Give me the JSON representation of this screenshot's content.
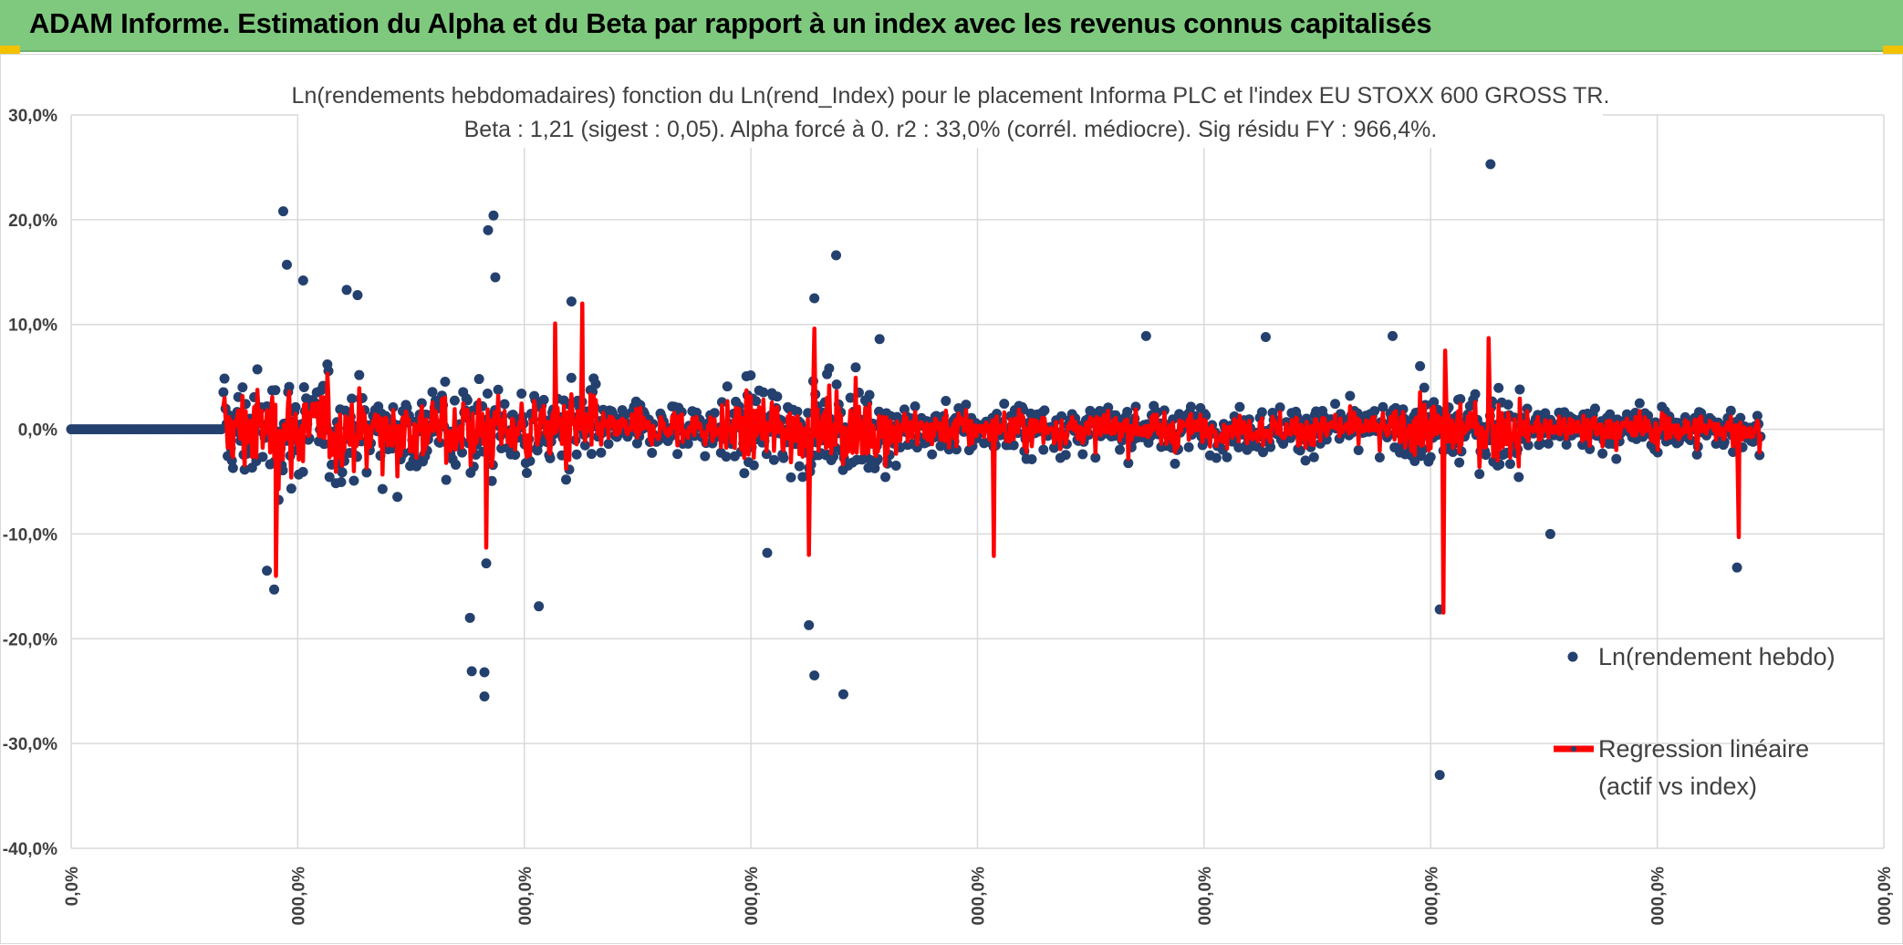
{
  "banner": {
    "title": "ADAM Informe. Estimation du Alpha et du Beta par rapport à un index avec les revenus connus capitalisés"
  },
  "colors": {
    "banner_bg": "#7fc97f",
    "scatter": "#24406e",
    "regression": "#ff0000",
    "gridline": "#d9d9d9",
    "text": "#404040",
    "corner": "#f2c200"
  },
  "chart_data": {
    "type": "scatter",
    "title": "Ln(rendements hebdomadaires) fonction du Ln(rend_Index) pour le placement Informa PLC et l'index EU STOXX 600 GROSS TR.",
    "subtitle": "Beta : 1,21 (sigest : 0,05). Alpha forcé à 0. r2 : 33,0% (corrél. médiocre). Sig résidu FY : 966,4%.",
    "ylim": [
      -40,
      30
    ],
    "y_ticks": [
      30,
      20,
      10,
      0,
      -10,
      -20,
      -30,
      -40
    ],
    "y_tick_labels": [
      "30,0%",
      "20,0%",
      "10,0%",
      "0,0%",
      "-10,0%",
      "-20,0%",
      "-30,0%",
      "-40,0%"
    ],
    "x_tick_labels": [
      "0,0%",
      "000,0%",
      "000,0%",
      "000,0%",
      "000,0%",
      "000,0%",
      "000,0%",
      "000,0%",
      "000,0%"
    ],
    "grid": true,
    "legend_position": "right",
    "series": [
      {
        "name": "Ln(rendement hebdo)",
        "kind": "scatter",
        "notable_points": [
          {
            "x": 11.7,
            "y": 20.8
          },
          {
            "x": 11.9,
            "y": 15.7
          },
          {
            "x": 12.8,
            "y": 14.2
          },
          {
            "x": 15.2,
            "y": 13.3
          },
          {
            "x": 15.8,
            "y": 12.8
          },
          {
            "x": 23.3,
            "y": 20.4
          },
          {
            "x": 23.0,
            "y": 19.0
          },
          {
            "x": 23.4,
            "y": 14.5
          },
          {
            "x": 27.6,
            "y": 12.2
          },
          {
            "x": 41.0,
            "y": 12.5
          },
          {
            "x": 42.2,
            "y": 16.6
          },
          {
            "x": 44.6,
            "y": 8.6
          },
          {
            "x": 59.3,
            "y": 8.9
          },
          {
            "x": 65.9,
            "y": 8.8
          },
          {
            "x": 72.9,
            "y": 8.9
          },
          {
            "x": 78.3,
            "y": 25.3
          },
          {
            "x": 10.8,
            "y": -13.5
          },
          {
            "x": 11.2,
            "y": -15.3
          },
          {
            "x": 22.0,
            "y": -18.0
          },
          {
            "x": 22.1,
            "y": -23.1
          },
          {
            "x": 22.8,
            "y": -23.2
          },
          {
            "x": 22.8,
            "y": -25.5
          },
          {
            "x": 22.9,
            "y": -12.8
          },
          {
            "x": 25.8,
            "y": -16.9
          },
          {
            "x": 40.7,
            "y": -18.7
          },
          {
            "x": 41.0,
            "y": -23.5
          },
          {
            "x": 42.6,
            "y": -25.3
          },
          {
            "x": 38.4,
            "y": -11.8
          },
          {
            "x": 75.5,
            "y": -33.0
          },
          {
            "x": 75.5,
            "y": -17.2
          },
          {
            "x": 91.9,
            "y": -13.2
          },
          {
            "x": 81.6,
            "y": -10.0
          }
        ],
        "approx_count": 1450,
        "x_start_of_returns": 8.4,
        "y_typical_band": [
          -5,
          5
        ]
      },
      {
        "name": "Regression linéaire (actif vs index)",
        "kind": "line",
        "beta": 1.21,
        "alpha": 0,
        "notable_extremes": [
          {
            "x": 11.3,
            "y": -14.0
          },
          {
            "x": 22.9,
            "y": -11.3
          },
          {
            "x": 26.7,
            "y": 10.1
          },
          {
            "x": 28.2,
            "y": 12.0
          },
          {
            "x": 40.7,
            "y": -12.0
          },
          {
            "x": 41.0,
            "y": 9.6
          },
          {
            "x": 50.9,
            "y": -12.1
          },
          {
            "x": 75.7,
            "y": -17.5
          },
          {
            "x": 75.8,
            "y": 7.5
          },
          {
            "x": 78.2,
            "y": 8.7
          },
          {
            "x": 92.0,
            "y": -10.3
          }
        ]
      }
    ],
    "legend": {
      "scatter_label": "Ln(rendement hebdo)",
      "line_label_1": "Regression linéaire",
      "line_label_2": "(actif vs index)"
    }
  }
}
